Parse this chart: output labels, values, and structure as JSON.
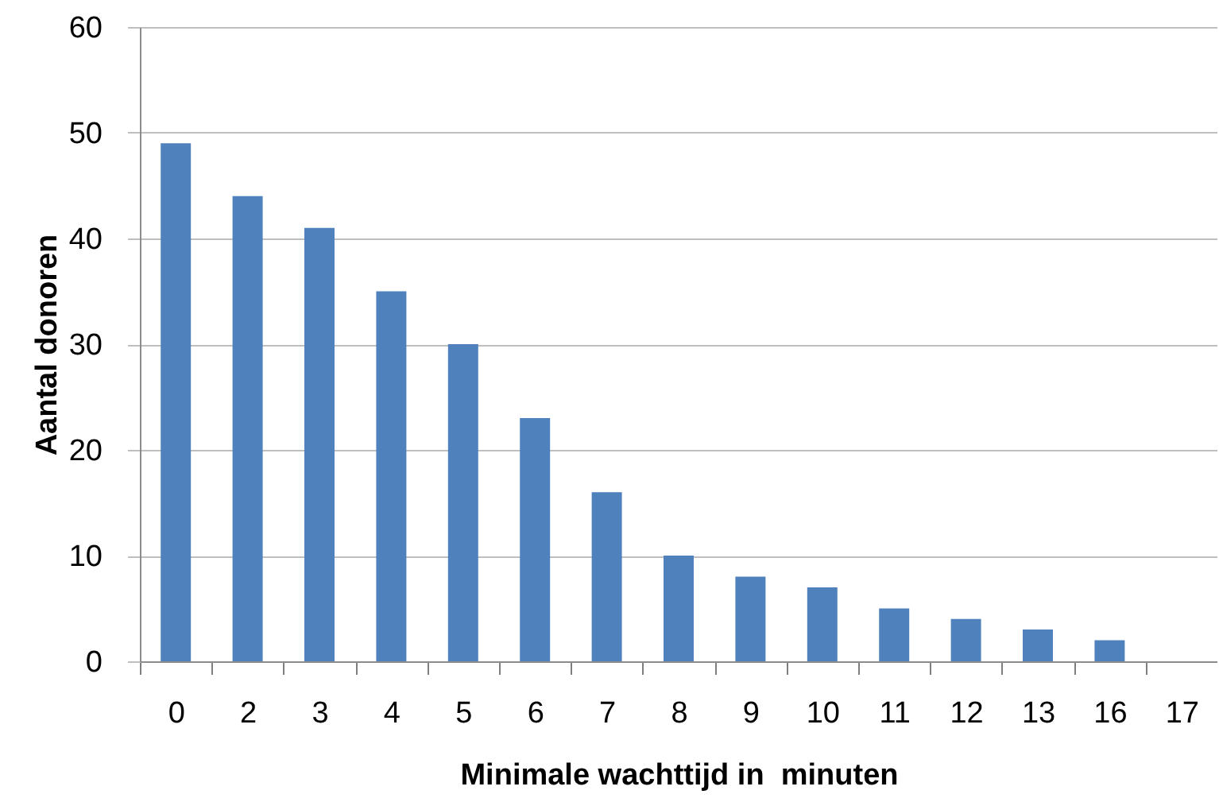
{
  "chart_data": {
    "type": "bar",
    "xlabel": "Minimale wachttijd in  minuten",
    "ylabel": "Aantal donoren",
    "categories": [
      "0",
      "2",
      "3",
      "4",
      "5",
      "6",
      "7",
      "8",
      "9",
      "10",
      "11",
      "12",
      "13",
      "16",
      "17"
    ],
    "values": [
      49,
      44,
      41,
      35,
      30,
      23,
      16,
      10,
      8,
      7,
      5,
      4,
      3,
      2,
      0
    ],
    "color": "#4f81bd",
    "ylim": [
      0,
      60
    ],
    "yticks": [
      0,
      10,
      20,
      30,
      40,
      50,
      60
    ],
    "grid": "y"
  }
}
